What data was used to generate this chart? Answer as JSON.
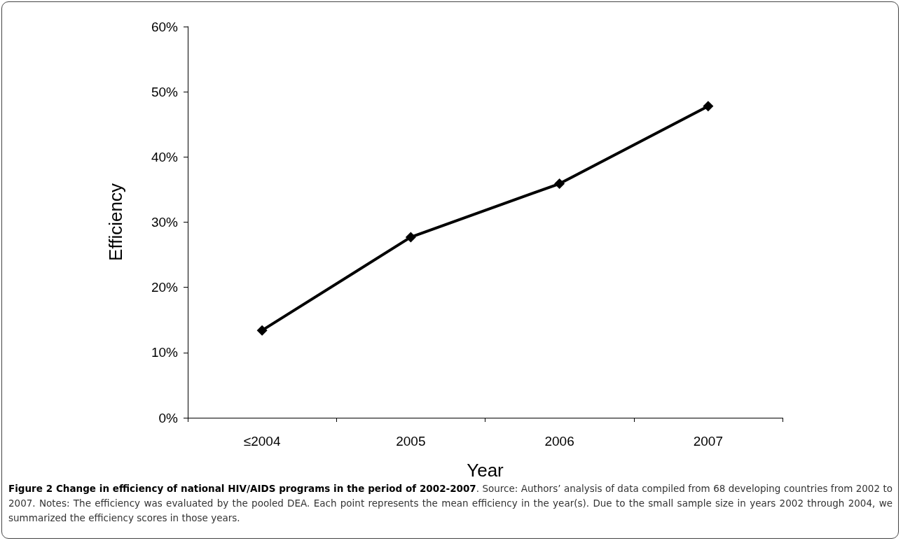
{
  "chart_data": {
    "type": "line",
    "title": "Figure 2 Change in efficiency of national HIV/AIDS programs in the period of 2002-2007",
    "annotations": [
      ". Source: Authors’ analysis of data compiled from 68 developing countries from 2002 to 2007. Notes: The efficiency was evaluated by the pooled DEA. Each point represents the mean efficiency in the year(s). Due to the small sample size in years 2002 through 2004, we summarized the efficiency scores in those years."
    ],
    "xlabel": "Year",
    "ylabel": "Efficiency",
    "categories": [
      "≤2004",
      "2005",
      "2006",
      "2007"
    ],
    "values": [
      13.4,
      27.7,
      35.9,
      47.8
    ],
    "color": "#000000",
    "ylim": [
      0,
      60
    ],
    "yticks": [
      {
        "value": 0,
        "label": "0%"
      },
      {
        "value": 10,
        "label": "10%"
      },
      {
        "value": 20,
        "label": "20%"
      },
      {
        "value": 30,
        "label": "30%"
      },
      {
        "value": 40,
        "label": "40%"
      },
      {
        "value": 50,
        "label": "50%"
      },
      {
        "value": 60,
        "label": "60%"
      }
    ],
    "grid": false,
    "marker": "diamond",
    "line_style": "solid"
  }
}
